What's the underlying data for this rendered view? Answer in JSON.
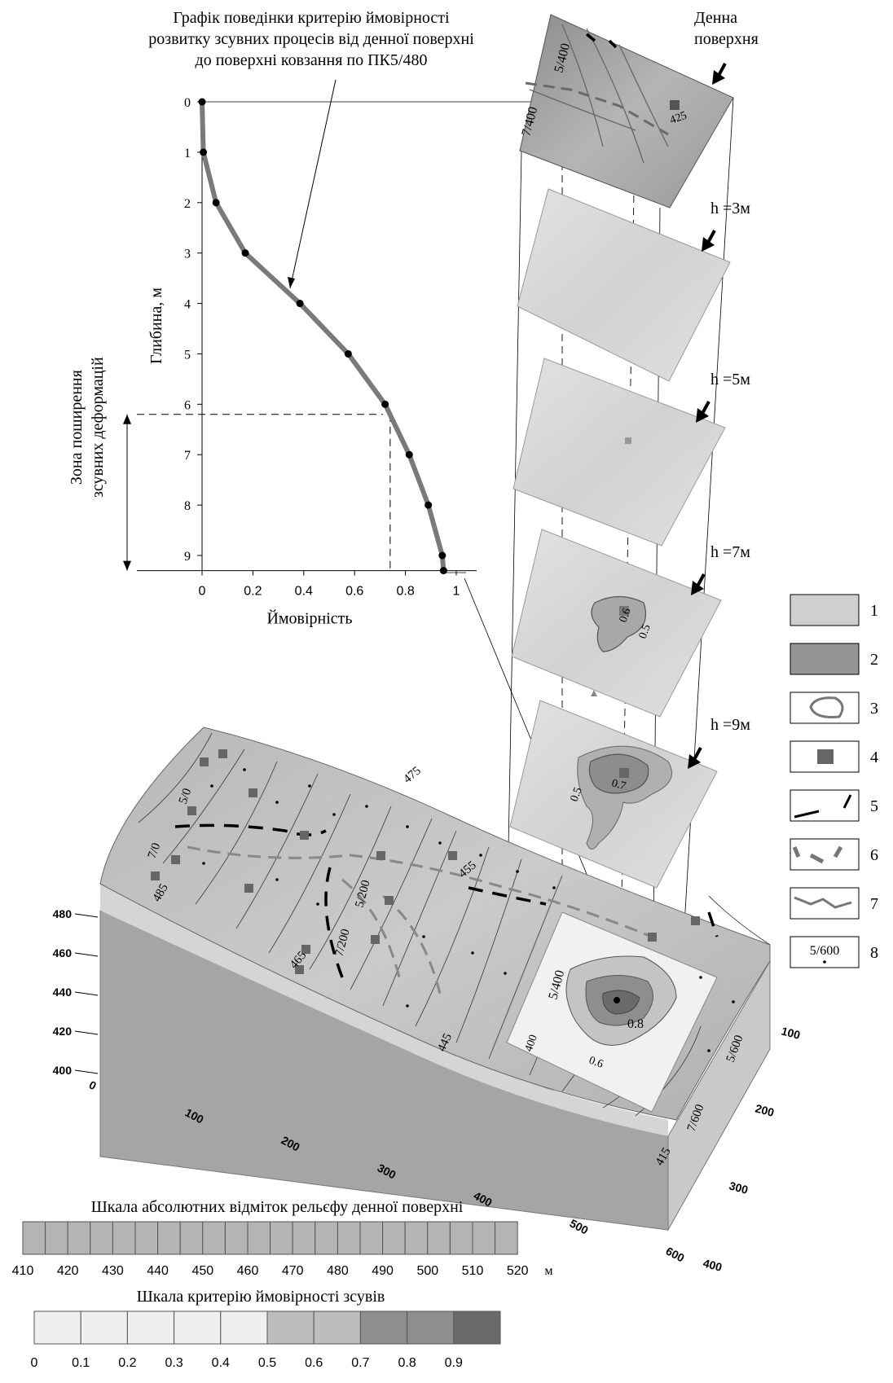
{
  "chart_data": [
    {
      "type": "line",
      "title": [
        "Графік поведінки критерію ймовірності",
        "розвитку зсувних процесів від денної поверхні",
        "до поверхні ковзання по ПК5/480"
      ],
      "xlabel": "Ймовірність",
      "ylabel": "Глибина, м",
      "xlim": [
        0,
        1
      ],
      "ylim": [
        0,
        9.3
      ],
      "y_inverted": true,
      "xticks": [
        "0",
        "0.2",
        "0.4",
        "0.6",
        "0.8",
        "1"
      ],
      "yticks": [
        "0",
        "1",
        "2",
        "3",
        "4",
        "5",
        "6",
        "7",
        "8",
        "9"
      ],
      "points": [
        {
          "x": 0.0,
          "y": 0.0
        },
        {
          "x": 0.005,
          "y": 1.0
        },
        {
          "x": 0.055,
          "y": 2.0
        },
        {
          "x": 0.17,
          "y": 3.0
        },
        {
          "x": 0.385,
          "y": 4.0
        },
        {
          "x": 0.575,
          "y": 5.0
        },
        {
          "x": 0.72,
          "y": 6.0
        },
        {
          "x": 0.815,
          "y": 7.0
        },
        {
          "x": 0.89,
          "y": 8.0
        },
        {
          "x": 0.945,
          "y": 9.0
        },
        {
          "x": 0.95,
          "y": 9.3
        }
      ],
      "marker_y": 6.2,
      "marker_x": 0.74,
      "zone_label": [
        "Зона поширення",
        "зсувних деформацій"
      ],
      "zone_range": [
        6.2,
        9.3
      ]
    },
    {
      "type": "heatmap",
      "name": "3d-block",
      "z_ticks": [
        "480",
        "460",
        "440",
        "420",
        "400"
      ],
      "x_ticks": [
        "0",
        "100",
        "200",
        "300",
        "400",
        "500",
        "600"
      ],
      "y_ticks": [
        "100",
        "200",
        "300",
        "400"
      ],
      "contour_labels": [
        "475",
        "455",
        "465",
        "485",
        "445",
        "415",
        "5/0",
        "7/0",
        "5/200",
        "7/200",
        "5/400",
        "400",
        "0.8",
        "0.6",
        "5/600",
        "7/600"
      ]
    }
  ],
  "slices": [
    {
      "label": "Денна поверхня",
      "labels": [
        "5/400",
        "7/400",
        "425"
      ]
    },
    {
      "label": "h =3м",
      "labels": []
    },
    {
      "label": "h =5м",
      "labels": []
    },
    {
      "label": "h =7м",
      "labels": [
        "0.6",
        "0.5"
      ]
    },
    {
      "label": "h =9м",
      "labels": [
        "0.7",
        "0.5"
      ]
    }
  ],
  "surface_label": [
    "Денна",
    "поверхня"
  ],
  "legend": {
    "items": [
      {
        "num": "1",
        "kind": "light-fill"
      },
      {
        "num": "2",
        "kind": "dark-fill"
      },
      {
        "num": "3",
        "kind": "contour-loop"
      },
      {
        "num": "4",
        "kind": "square-marker"
      },
      {
        "num": "5",
        "kind": "black-scarp"
      },
      {
        "num": "6",
        "kind": "dashed-crack"
      },
      {
        "num": "7",
        "kind": "polyline"
      },
      {
        "num": "8",
        "kind": "point-label",
        "text": "5/600"
      }
    ]
  },
  "scales": {
    "relief": {
      "title": "Шкала абсолютних відміток рельєфу денної поверхні",
      "ticks": [
        "410",
        "420",
        "430",
        "440",
        "450",
        "460",
        "470",
        "480",
        "490",
        "500",
        "510",
        "520"
      ],
      "unit": "м",
      "color": "#b4b4b4"
    },
    "probability": {
      "title": "Шкала критерію ймовірності зсувів",
      "ticks": [
        "0",
        "0.1",
        "0.2",
        "0.3",
        "0.4",
        "0.5",
        "0.6",
        "0.7",
        "0.8",
        "0.9"
      ],
      "colors": [
        "#efefef",
        "#efefef",
        "#efefef",
        "#efefef",
        "#efefef",
        "#bdbdbd",
        "#bdbdbd",
        "#8e8e8e",
        "#8e8e8e",
        "#6a6a6a"
      ]
    }
  },
  "colors": {
    "curve": "#7a7a7a",
    "surface": "#c2c2c2",
    "block_side": "#a9a9a9",
    "slice": "#d9d9d9"
  }
}
